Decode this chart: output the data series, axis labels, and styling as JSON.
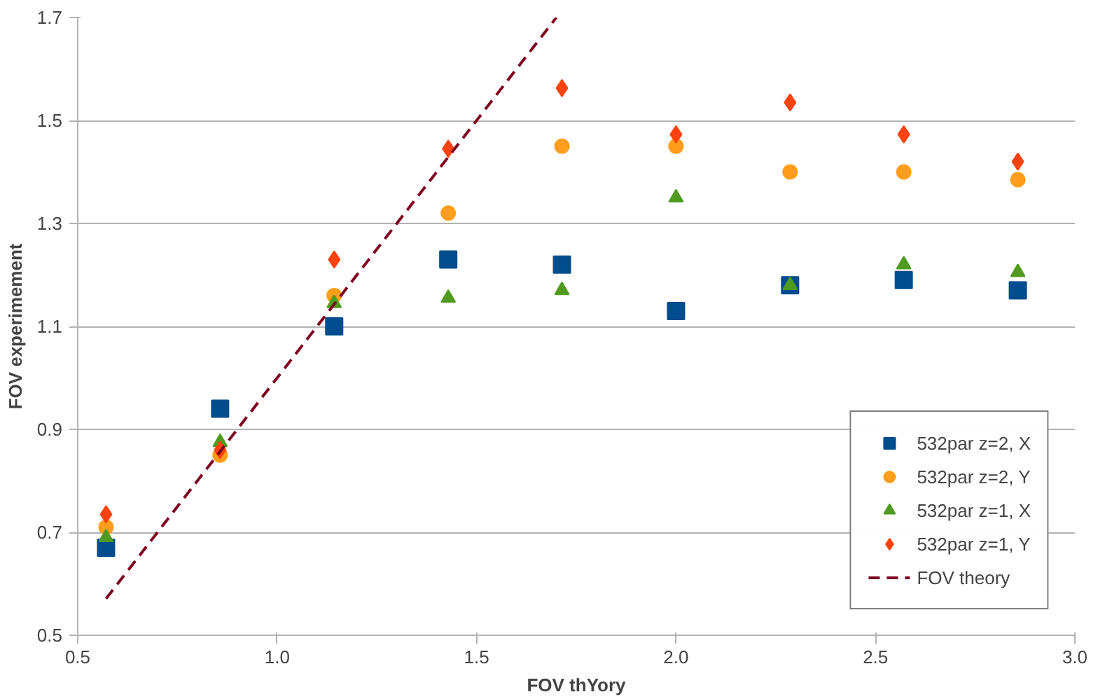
{
  "chart_data": {
    "type": "scatter",
    "xlabel": "FOV thYory",
    "ylabel": "FOV experimement",
    "x": [
      0.571,
      0.857,
      1.143,
      1.429,
      1.714,
      2.0,
      2.286,
      2.571,
      2.857
    ],
    "series": [
      {
        "name": "532par z=2, X",
        "color": "#004c8c",
        "marker": "square",
        "values": [
          0.67,
          0.94,
          1.1,
          1.23,
          1.22,
          1.13,
          1.18,
          1.19,
          1.17
        ]
      },
      {
        "name": "532par z=2, Y",
        "color": "#ff9e1b",
        "marker": "circle",
        "values": [
          0.71,
          0.85,
          1.16,
          1.32,
          1.45,
          1.45,
          1.4,
          1.4,
          1.385
        ]
      },
      {
        "name": "532par z=1, X",
        "color": "#4f9a1f",
        "marker": "triangle",
        "values": [
          0.69,
          0.875,
          1.145,
          1.155,
          1.17,
          1.35,
          1.18,
          1.22,
          1.205
        ]
      },
      {
        "name": "532par z=1, Y",
        "color": "#ff420e",
        "marker": "diamond",
        "values": [
          0.735,
          0.86,
          1.23,
          1.445,
          1.563,
          1.473,
          1.535,
          1.473,
          1.42
        ]
      },
      {
        "name": "FOV theory",
        "type": "line",
        "color": "#7e0021",
        "line_style": "dashed",
        "marker": "none",
        "x": [
          0.571,
          1.7
        ],
        "values": [
          0.571,
          1.7
        ]
      }
    ],
    "xlim": [
      0.5,
      3.0
    ],
    "ylim": [
      0.5,
      1.7
    ],
    "xticks": [
      {
        "value": 0.5,
        "label": "0.5"
      },
      {
        "value": 1.0,
        "label": "1.0"
      },
      {
        "value": 1.5,
        "label": "1.5"
      },
      {
        "value": 2.0,
        "label": "2.0"
      },
      {
        "value": 2.5,
        "label": "2.5"
      },
      {
        "value": 3.0,
        "label": "3.0"
      }
    ],
    "yticks": [
      0.5,
      0.7,
      0.9,
      1.1,
      1.3,
      1.5,
      1.7
    ],
    "grid": "y",
    "legend": "bottom right"
  }
}
